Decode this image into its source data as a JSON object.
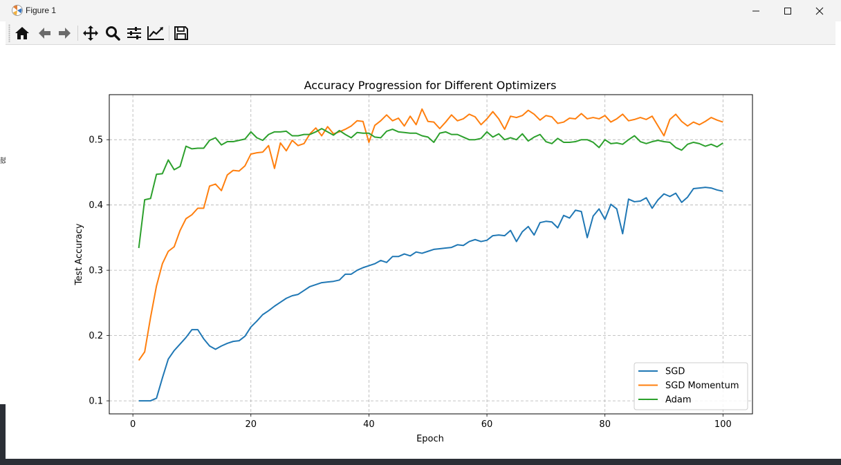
{
  "window": {
    "title": "Figure 1",
    "side_glyph": "鼓"
  },
  "toolbar": {
    "buttons": [
      {
        "name": "home-icon"
      },
      {
        "name": "back-arrow-icon"
      },
      {
        "name": "forward-arrow-icon"
      },
      {
        "name": "pan-icon"
      },
      {
        "name": "zoom-icon"
      },
      {
        "name": "configure-subplots-icon"
      },
      {
        "name": "edit-axis-icon"
      },
      {
        "name": "save-icon"
      }
    ]
  },
  "chart_data": {
    "type": "line",
    "title": "Accuracy Progression for Different Optimizers",
    "xlabel": "Epoch",
    "ylabel": "Test Accuracy",
    "xlim": [
      -4,
      105
    ],
    "ylim": [
      0.08,
      0.569
    ],
    "xticks": [
      0,
      20,
      40,
      60,
      80,
      100
    ],
    "yticks": [
      0.1,
      0.2,
      0.3,
      0.4,
      0.5
    ],
    "xtick_labels": [
      "0",
      "20",
      "40",
      "60",
      "80",
      "100"
    ],
    "ytick_labels": [
      "0.1",
      "0.2",
      "0.3",
      "0.4",
      "0.5"
    ],
    "grid": true,
    "legend_position": "lower-right",
    "series": [
      {
        "name": "SGD",
        "color": "#1f77b4",
        "values": [
          0.1,
          0.1,
          0.1,
          0.104,
          0.135,
          0.164,
          0.177,
          0.187,
          0.197,
          0.209,
          0.209,
          0.195,
          0.184,
          0.179,
          0.184,
          0.188,
          0.191,
          0.192,
          0.199,
          0.213,
          0.222,
          0.232,
          0.238,
          0.245,
          0.251,
          0.257,
          0.261,
          0.263,
          0.269,
          0.275,
          0.278,
          0.281,
          0.282,
          0.283,
          0.285,
          0.294,
          0.294,
          0.3,
          0.304,
          0.307,
          0.31,
          0.315,
          0.312,
          0.321,
          0.321,
          0.325,
          0.322,
          0.328,
          0.326,
          0.329,
          0.332,
          0.333,
          0.334,
          0.335,
          0.339,
          0.338,
          0.344,
          0.347,
          0.344,
          0.346,
          0.353,
          0.354,
          0.353,
          0.361,
          0.344,
          0.359,
          0.367,
          0.354,
          0.373,
          0.375,
          0.374,
          0.365,
          0.384,
          0.38,
          0.392,
          0.39,
          0.35,
          0.383,
          0.394,
          0.378,
          0.401,
          0.394,
          0.356,
          0.409,
          0.405,
          0.406,
          0.411,
          0.395,
          0.408,
          0.417,
          0.413,
          0.418,
          0.404,
          0.412,
          0.425,
          0.426,
          0.427,
          0.426,
          0.423,
          0.421
        ]
      },
      {
        "name": "SGD Momentum",
        "color": "#ff7f0e",
        "values": [
          0.162,
          0.175,
          0.228,
          0.276,
          0.31,
          0.329,
          0.336,
          0.361,
          0.379,
          0.385,
          0.395,
          0.395,
          0.429,
          0.432,
          0.422,
          0.446,
          0.453,
          0.452,
          0.46,
          0.478,
          0.48,
          0.481,
          0.491,
          0.456,
          0.495,
          0.483,
          0.499,
          0.491,
          0.494,
          0.509,
          0.518,
          0.506,
          0.52,
          0.509,
          0.512,
          0.516,
          0.521,
          0.529,
          0.528,
          0.496,
          0.522,
          0.529,
          0.538,
          0.529,
          0.533,
          0.521,
          0.536,
          0.523,
          0.547,
          0.528,
          0.527,
          0.517,
          0.527,
          0.538,
          0.529,
          0.532,
          0.539,
          0.535,
          0.523,
          0.532,
          0.543,
          0.532,
          0.516,
          0.536,
          0.534,
          0.537,
          0.545,
          0.539,
          0.53,
          0.537,
          0.535,
          0.525,
          0.527,
          0.533,
          0.532,
          0.54,
          0.532,
          0.534,
          0.532,
          0.537,
          0.527,
          0.532,
          0.539,
          0.529,
          0.531,
          0.534,
          0.531,
          0.536,
          0.521,
          0.506,
          0.531,
          0.539,
          0.528,
          0.521,
          0.527,
          0.523,
          0.528,
          0.534,
          0.53,
          0.527
        ]
      },
      {
        "name": "Adam",
        "color": "#2ca02c",
        "values": [
          0.334,
          0.408,
          0.41,
          0.447,
          0.448,
          0.469,
          0.454,
          0.459,
          0.49,
          0.486,
          0.487,
          0.487,
          0.499,
          0.503,
          0.492,
          0.497,
          0.497,
          0.499,
          0.501,
          0.512,
          0.503,
          0.499,
          0.508,
          0.512,
          0.512,
          0.513,
          0.506,
          0.506,
          0.508,
          0.508,
          0.512,
          0.517,
          0.512,
          0.507,
          0.514,
          0.508,
          0.503,
          0.511,
          0.51,
          0.51,
          0.504,
          0.503,
          0.513,
          0.516,
          0.512,
          0.511,
          0.51,
          0.51,
          0.506,
          0.504,
          0.496,
          0.51,
          0.512,
          0.508,
          0.508,
          0.504,
          0.5,
          0.5,
          0.502,
          0.512,
          0.504,
          0.509,
          0.5,
          0.503,
          0.5,
          0.509,
          0.498,
          0.504,
          0.508,
          0.497,
          0.494,
          0.502,
          0.496,
          0.496,
          0.497,
          0.5,
          0.5,
          0.496,
          0.488,
          0.5,
          0.494,
          0.495,
          0.493,
          0.5,
          0.506,
          0.497,
          0.494,
          0.497,
          0.499,
          0.497,
          0.496,
          0.488,
          0.484,
          0.493,
          0.496,
          0.494,
          0.49,
          0.493,
          0.489,
          0.495
        ]
      }
    ]
  }
}
